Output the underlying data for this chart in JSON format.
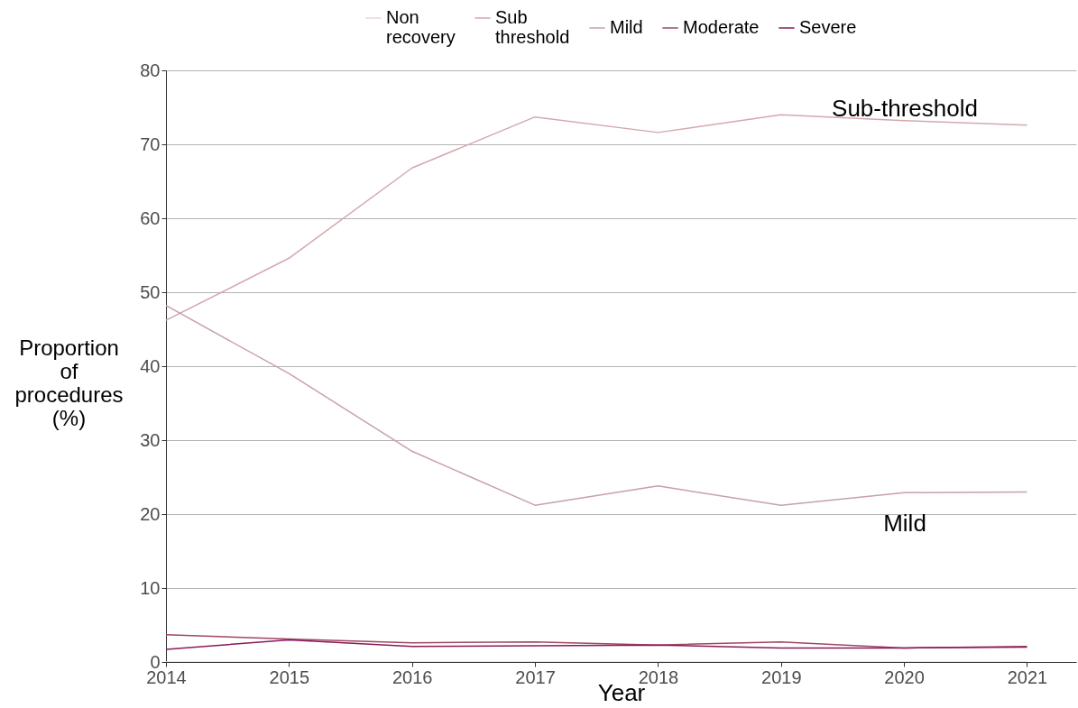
{
  "chart_data": {
    "type": "line",
    "xlabel": "Year",
    "ylabel": "Proportion of procedures (%)",
    "x": [
      2014,
      2015,
      2016,
      2017,
      2018,
      2019,
      2020,
      2021
    ],
    "series": [
      {
        "name": "Non recovery",
        "color": "#ecd6d8",
        "values": [
          0,
          0,
          0,
          0,
          0,
          0,
          0,
          0
        ]
      },
      {
        "name": "Sub threshold",
        "color": "#d4a8ac",
        "values": [
          46.2,
          54.6,
          66.8,
          73.7,
          71.6,
          74.0,
          73.2,
          72.6
        ]
      },
      {
        "name": "Mild",
        "color": "#c89fb0",
        "values": [
          48.2,
          39.0,
          28.5,
          21.2,
          23.8,
          21.2,
          22.9,
          23.0
        ]
      },
      {
        "name": "Moderate",
        "color": "#a0485e",
        "values": [
          3.7,
          3.1,
          2.6,
          2.7,
          2.3,
          2.7,
          1.9,
          2.1
        ]
      },
      {
        "name": "Severe",
        "color": "#8b1a5e",
        "values": [
          1.7,
          3.0,
          2.1,
          2.2,
          2.3,
          1.9,
          1.9,
          2.0
        ]
      }
    ],
    "xlim": [
      2014,
      2021.4
    ],
    "xticks": [
      2014,
      2015,
      2016,
      2017,
      2018,
      2019,
      2020,
      2021
    ],
    "ylim": [
      0,
      80
    ],
    "yticks": [
      0,
      10,
      20,
      30,
      40,
      50,
      60,
      70,
      80
    ],
    "grid": "y",
    "legend": "top",
    "marker": "none",
    "line_style": "solid",
    "annotations": [
      "Sub-threshold",
      "Mild"
    ]
  }
}
